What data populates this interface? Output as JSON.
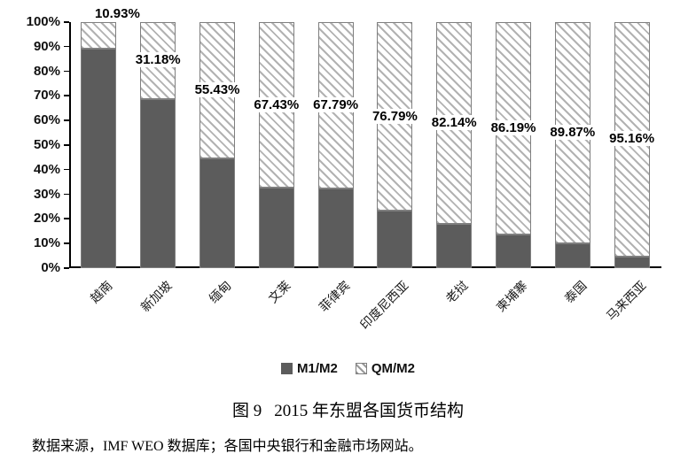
{
  "chart_data": {
    "type": "bar",
    "variant": "stacked-column-100pct",
    "categories": [
      "越南",
      "新加坡",
      "缅甸",
      "文莱",
      "菲律宾",
      "印度尼西亚",
      "老挝",
      "柬埔寨",
      "泰国",
      "马来西亚"
    ],
    "series": [
      {
        "name": "M1/M2",
        "fill": "solid",
        "color": "#5c5c5c",
        "values": [
          89.07,
          68.82,
          44.57,
          32.57,
          32.21,
          23.21,
          17.86,
          13.81,
          10.13,
          4.84
        ]
      },
      {
        "name": "QM/M2",
        "fill": "hatch",
        "hatch_stripe_color": "#b2b2b2",
        "values": [
          10.93,
          31.18,
          55.43,
          67.43,
          67.79,
          76.79,
          82.14,
          86.19,
          89.87,
          95.16
        ],
        "data_labels": [
          "10.93%",
          "31.18%",
          "55.43%",
          "67.43%",
          "67.79%",
          "76.79%",
          "82.14%",
          "86.19%",
          "89.87%",
          "95.16%"
        ],
        "label_placement": [
          "above-bar",
          "segment-center",
          "segment-center",
          "segment-center",
          "segment-center",
          "segment-center",
          "segment-center",
          "segment-center",
          "segment-center",
          "segment-center"
        ]
      }
    ],
    "ylim": [
      0,
      100
    ],
    "ytick_step": 10,
    "yticklabels": [
      "0%",
      "10%",
      "20%",
      "30%",
      "40%",
      "50%",
      "60%",
      "70%",
      "80%",
      "90%",
      "100%"
    ],
    "grid": false,
    "legend_position": "bottom",
    "bar_border_color": "#7f7f7f",
    "axis_color": "#000000"
  },
  "caption": {
    "figure_label": "图 9",
    "title": "2015 年东盟各国货币结构"
  },
  "source_note": "数据来源，IMF WEO 数据库；各国中央银行和金融市场网站。"
}
